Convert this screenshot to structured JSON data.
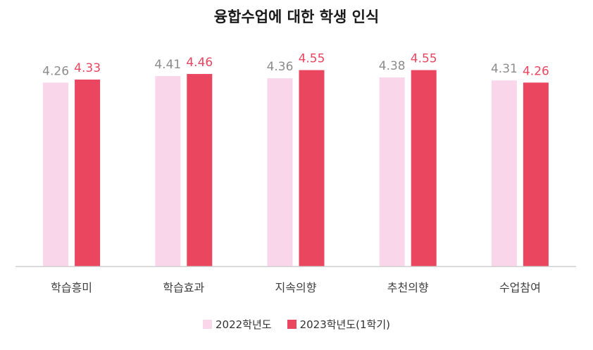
{
  "chart_data": {
    "type": "bar",
    "title": "융합수업에 대한 학생 인식",
    "categories": [
      "학습흥미",
      "학습효과",
      "지속의향",
      "추천의향",
      "수업참여"
    ],
    "series": [
      {
        "name": "2022학년도",
        "color": "#fad6ea",
        "label_color": "#8c8c8c",
        "values": [
          4.26,
          4.41,
          4.36,
          4.38,
          4.31
        ]
      },
      {
        "name": "2023학년도(1학기)",
        "color": "#ea4660",
        "label_color": "#ea4660",
        "values": [
          4.33,
          4.46,
          4.55,
          4.55,
          4.26
        ]
      }
    ],
    "value_labels": [
      [
        "4.26",
        "4.41",
        "4.36",
        "4.38",
        "4.31"
      ],
      [
        "4.33",
        "4.46",
        "4.55",
        "4.55",
        "4.26"
      ]
    ],
    "ylim": [
      0,
      5
    ],
    "grid": false,
    "legend_position": "bottom",
    "xlabel": "",
    "ylabel": ""
  },
  "colors": {
    "axis": "#cfcfcf",
    "category_text": "#404040"
  }
}
